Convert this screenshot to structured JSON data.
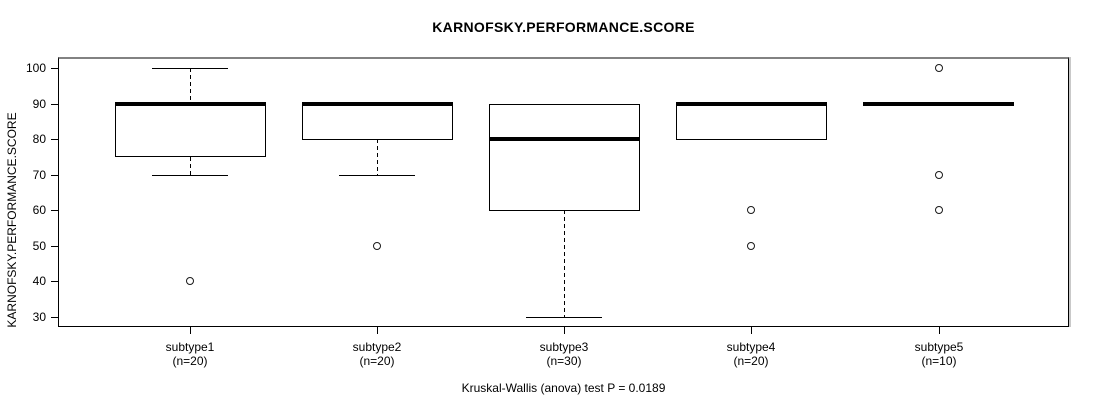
{
  "chart_data": {
    "type": "boxplot",
    "title": "KARNOFSKY.PERFORMANCE.SCORE",
    "ylabel": "KARNOFSKY.PERFORMANCE.SCORE",
    "footer": "Kruskal-Wallis (anova) test P = 0.0189",
    "y_ticks": [
      30,
      40,
      50,
      60,
      70,
      80,
      90,
      100
    ],
    "ylim": [
      27.2,
      103.1
    ],
    "grid": false,
    "legend": null,
    "groups": [
      {
        "label": "subtype1",
        "sublabel": "(n=20)",
        "n": 20,
        "q1": 75,
        "median": 90,
        "q3": 90,
        "whisker_low": 70,
        "whisker_high": 100,
        "outliers": [
          40
        ]
      },
      {
        "label": "subtype2",
        "sublabel": "(n=20)",
        "n": 20,
        "q1": 80,
        "median": 90,
        "q3": 90,
        "whisker_low": 70,
        "whisker_high": 90,
        "outliers": [
          50
        ]
      },
      {
        "label": "subtype3",
        "sublabel": "(n=30)",
        "n": 30,
        "q1": 60,
        "median": 80,
        "q3": 90,
        "whisker_low": 30,
        "whisker_high": 90,
        "outliers": []
      },
      {
        "label": "subtype4",
        "sublabel": "(n=20)",
        "n": 20,
        "q1": 80,
        "median": 90,
        "q3": 90,
        "whisker_low": 80,
        "whisker_high": 90,
        "outliers": [
          60,
          50
        ]
      },
      {
        "label": "subtype5",
        "sublabel": "(n=10)",
        "n": 10,
        "q1": 90,
        "median": 90,
        "q3": 90,
        "whisker_low": 90,
        "whisker_high": 90,
        "outliers": [
          100,
          70,
          60
        ]
      }
    ]
  }
}
